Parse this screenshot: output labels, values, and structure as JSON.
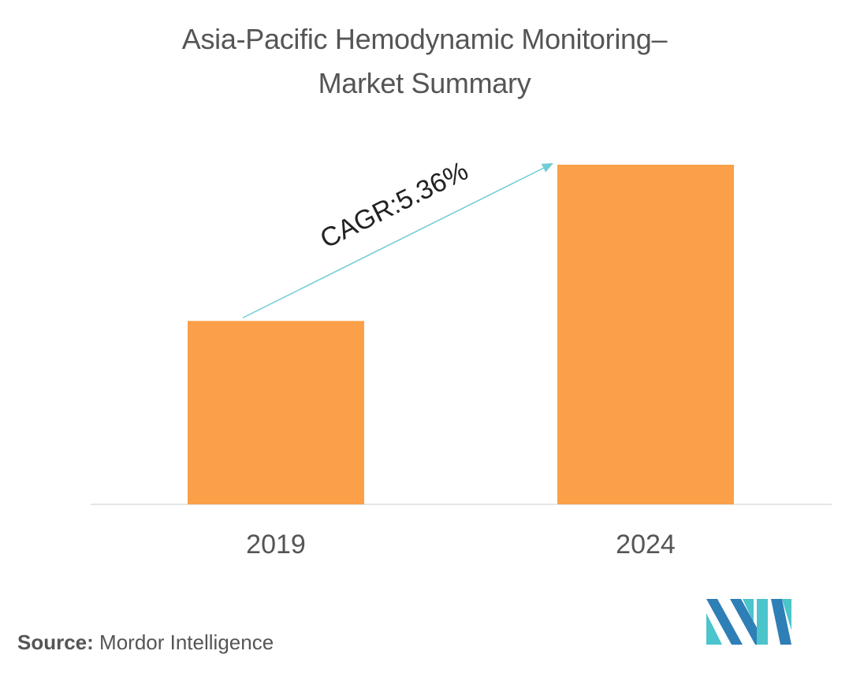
{
  "title_line1": "Asia-Pacific Hemodynamic Monitoring–",
  "title_line2": "Market Summary",
  "source_label": "Source:",
  "source_value": "Mordor Intelligence",
  "colors": {
    "bar": "#FBA049",
    "arrow": "#72CDD4",
    "axis": "#DDDDDD",
    "text": "#555555",
    "logo_dark": "#2E7FB5",
    "logo_light": "#4CC4CC"
  },
  "chart_data": {
    "type": "bar",
    "categories": [
      "2019",
      "2024"
    ],
    "values": [
      54,
      100
    ],
    "annotation": "CAGR:5.36%",
    "ylim": [
      0,
      100
    ],
    "grid": false
  }
}
